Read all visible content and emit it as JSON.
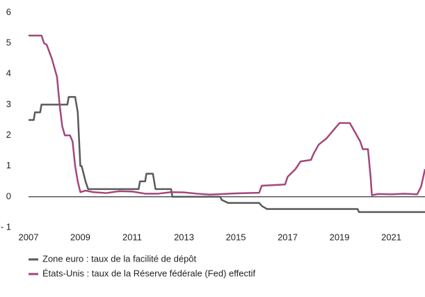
{
  "chart_data": {
    "type": "line",
    "xlim": [
      2007,
      2022.3
    ],
    "xticks": [
      2007,
      2009,
      2011,
      2013,
      2015,
      2017,
      2019,
      2021
    ],
    "ylim": [
      -1,
      6
    ],
    "yticks": [
      {
        "value": -1,
        "label": "- 1"
      },
      0,
      1,
      2,
      3,
      4,
      5,
      6
    ],
    "grid": false,
    "legend": "bottom-left",
    "series": [
      {
        "name": "Zone euro : taux de la facilité de dépôt",
        "color": "#595959",
        "x": [
          2007.0,
          2007.2,
          2007.25,
          2007.45,
          2007.5,
          2008.5,
          2008.55,
          2008.8,
          2008.9,
          2009.0,
          2009.05,
          2009.2,
          2009.3,
          2011.25,
          2011.3,
          2011.5,
          2011.55,
          2011.8,
          2011.9,
          2012.5,
          2012.55,
          2014.4,
          2014.45,
          2014.7,
          2015.9,
          2016.0,
          2016.2,
          2019.7,
          2019.75,
          2022.3
        ],
        "values": [
          2.5,
          2.5,
          2.75,
          2.75,
          3.0,
          3.0,
          3.25,
          3.25,
          2.75,
          1.0,
          1.0,
          0.5,
          0.25,
          0.25,
          0.5,
          0.5,
          0.75,
          0.75,
          0.25,
          0.25,
          0,
          0,
          -0.1,
          -0.2,
          -0.2,
          -0.3,
          -0.4,
          -0.4,
          -0.5,
          -0.5
        ]
      },
      {
        "name": "États-Unis : taux de la Réserve fédérale (Fed) effectif",
        "color": "#a3467c",
        "x": [
          2007.0,
          2007.5,
          2007.6,
          2007.7,
          2007.9,
          2008.1,
          2008.2,
          2008.3,
          2008.4,
          2008.6,
          2008.7,
          2008.8,
          2008.9,
          2009.0,
          2009.2,
          2009.5,
          2010.0,
          2010.5,
          2011.0,
          2011.5,
          2012.0,
          2012.5,
          2013.0,
          2013.5,
          2014.0,
          2014.5,
          2015.0,
          2015.9,
          2016.0,
          2016.9,
          2017.0,
          2017.3,
          2017.5,
          2017.9,
          2018.0,
          2018.2,
          2018.5,
          2018.8,
          2019.0,
          2019.4,
          2019.6,
          2019.8,
          2019.9,
          2020.1,
          2020.2,
          2020.25,
          2020.5,
          2021.0,
          2021.5,
          2022.0,
          2022.15,
          2022.3
        ],
        "values": [
          5.25,
          5.25,
          5.0,
          4.95,
          4.5,
          3.9,
          3.0,
          2.3,
          2.0,
          2.0,
          1.8,
          1.0,
          0.5,
          0.15,
          0.2,
          0.15,
          0.12,
          0.18,
          0.17,
          0.1,
          0.1,
          0.15,
          0.14,
          0.1,
          0.07,
          0.09,
          0.11,
          0.13,
          0.36,
          0.4,
          0.65,
          0.9,
          1.15,
          1.2,
          1.4,
          1.7,
          1.9,
          2.2,
          2.4,
          2.4,
          2.1,
          1.8,
          1.55,
          1.55,
          0.65,
          0.05,
          0.09,
          0.08,
          0.1,
          0.08,
          0.33,
          0.9
        ]
      }
    ]
  }
}
